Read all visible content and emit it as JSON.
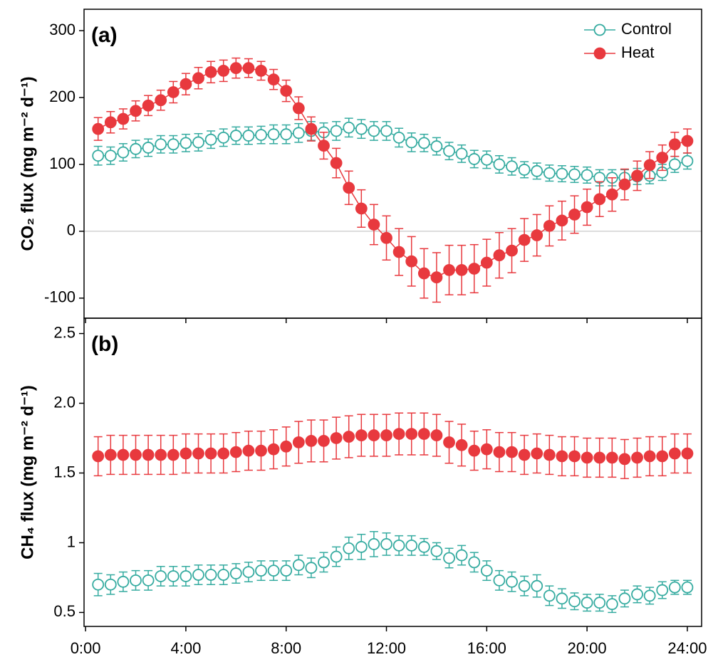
{
  "chart_data": [
    {
      "type": "line",
      "panel_label": "(a)",
      "y_label": "CO₂ flux (mg m⁻² d⁻¹)",
      "x": [
        0.5,
        1,
        1.5,
        2,
        2.5,
        3,
        3.5,
        4,
        4.5,
        5,
        5.5,
        6,
        6.5,
        7,
        7.5,
        8,
        8.5,
        9,
        9.5,
        10,
        10.5,
        11,
        11.5,
        12,
        12.5,
        13,
        13.5,
        14,
        14.5,
        15,
        15.5,
        16,
        16.5,
        17,
        17.5,
        18,
        18.5,
        19,
        19.5,
        20,
        20.5,
        21,
        21.5,
        22,
        22.5,
        23,
        23.5,
        24
      ],
      "xlim": [
        -0.06,
        24.57
      ],
      "xticks": [
        0,
        4,
        8,
        12,
        16,
        20,
        24
      ],
      "ylim": [
        -130,
        332
      ],
      "yticks": [
        -100,
        0,
        100,
        200,
        300
      ],
      "zero_line": true,
      "legend": "upper right",
      "connect": true,
      "series": [
        {
          "name": "Control",
          "color": "#35aba0",
          "filled": false,
          "values": [
            113,
            113,
            118,
            123,
            125,
            130,
            130,
            132,
            133,
            137,
            140,
            143,
            143,
            144,
            145,
            145,
            147,
            150,
            148,
            150,
            155,
            153,
            150,
            150,
            140,
            133,
            132,
            127,
            120,
            116,
            108,
            107,
            100,
            97,
            92,
            90,
            87,
            86,
            85,
            84,
            80,
            80,
            80,
            82,
            83,
            88,
            100,
            105
          ],
          "errors": [
            14,
            13,
            13,
            13,
            13,
            13,
            13,
            13,
            13,
            13,
            13,
            13,
            13,
            13,
            14,
            14,
            14,
            14,
            14,
            14,
            14,
            14,
            14,
            14,
            14,
            14,
            13,
            13,
            13,
            13,
            13,
            13,
            13,
            13,
            12,
            12,
            12,
            12,
            12,
            12,
            12,
            12,
            12,
            12,
            12,
            12,
            12,
            12
          ]
        },
        {
          "name": "Heat",
          "color": "#e8393e",
          "filled": true,
          "values": [
            153,
            163,
            168,
            180,
            188,
            196,
            208,
            220,
            229,
            238,
            240,
            244,
            244,
            240,
            227,
            210,
            184,
            153,
            128,
            102,
            65,
            34,
            10,
            -10,
            -31,
            -45,
            -63,
            -69,
            -58,
            -58,
            -56,
            -47,
            -36,
            -29,
            -13,
            -6,
            8,
            16,
            25,
            36,
            48,
            55,
            70,
            83,
            99,
            110,
            130,
            135
          ],
          "errors": [
            17,
            16,
            15,
            15,
            15,
            15,
            16,
            16,
            16,
            16,
            16,
            15,
            14,
            14,
            15,
            16,
            17,
            18,
            20,
            22,
            25,
            28,
            30,
            33,
            35,
            37,
            37,
            37,
            37,
            37,
            36,
            35,
            34,
            33,
            32,
            31,
            30,
            29,
            28,
            27,
            26,
            25,
            23,
            22,
            20,
            19,
            18,
            18
          ]
        }
      ]
    },
    {
      "type": "scatter",
      "panel_label": "(b)",
      "y_label": "CH₄ flux (mg m⁻² d⁻¹)",
      "x": [
        0.5,
        1,
        1.5,
        2,
        2.5,
        3,
        3.5,
        4,
        4.5,
        5,
        5.5,
        6,
        6.5,
        7,
        7.5,
        8,
        8.5,
        9,
        9.5,
        10,
        10.5,
        11,
        11.5,
        12,
        12.5,
        13,
        13.5,
        14,
        14.5,
        15,
        15.5,
        16,
        16.5,
        17,
        17.5,
        18,
        18.5,
        19,
        19.5,
        20,
        20.5,
        21,
        21.5,
        22,
        22.5,
        23,
        23.5,
        24
      ],
      "xlim": [
        -0.06,
        24.57
      ],
      "xticks": [
        {
          "value": 0,
          "label": "0:00"
        },
        {
          "value": 4,
          "label": "4:00"
        },
        {
          "value": 8,
          "label": "8:00"
        },
        {
          "value": 12,
          "label": "12:00"
        },
        {
          "value": 16,
          "label": "16:00"
        },
        {
          "value": 20,
          "label": "20:00"
        },
        {
          "value": 24,
          "label": "24:00"
        }
      ],
      "ylim": [
        0.4,
        2.61
      ],
      "yticks": [
        0.5,
        1,
        1.5,
        {
          "value": 2,
          "label": "2.0"
        },
        2.5
      ],
      "connect": false,
      "series": [
        {
          "name": "Control",
          "color": "#35aba0",
          "filled": false,
          "values": [
            0.7,
            0.7,
            0.72,
            0.73,
            0.73,
            0.76,
            0.76,
            0.76,
            0.77,
            0.77,
            0.77,
            0.78,
            0.79,
            0.8,
            0.8,
            0.8,
            0.84,
            0.82,
            0.86,
            0.9,
            0.96,
            0.97,
            0.99,
            0.99,
            0.98,
            0.98,
            0.97,
            0.94,
            0.89,
            0.91,
            0.86,
            0.8,
            0.73,
            0.72,
            0.69,
            0.69,
            0.62,
            0.6,
            0.58,
            0.57,
            0.57,
            0.56,
            0.6,
            0.63,
            0.62,
            0.66,
            0.68,
            0.68
          ],
          "errors": [
            0.08,
            0.07,
            0.07,
            0.07,
            0.07,
            0.07,
            0.07,
            0.07,
            0.07,
            0.07,
            0.07,
            0.07,
            0.07,
            0.07,
            0.07,
            0.07,
            0.07,
            0.07,
            0.07,
            0.07,
            0.08,
            0.09,
            0.09,
            0.08,
            0.07,
            0.07,
            0.06,
            0.06,
            0.07,
            0.07,
            0.07,
            0.07,
            0.07,
            0.07,
            0.07,
            0.08,
            0.07,
            0.07,
            0.06,
            0.06,
            0.06,
            0.06,
            0.06,
            0.06,
            0.06,
            0.06,
            0.05,
            0.05
          ]
        },
        {
          "name": "Heat",
          "color": "#e8393e",
          "filled": true,
          "values": [
            1.62,
            1.63,
            1.63,
            1.63,
            1.63,
            1.63,
            1.63,
            1.64,
            1.64,
            1.64,
            1.64,
            1.65,
            1.66,
            1.66,
            1.67,
            1.69,
            1.72,
            1.73,
            1.73,
            1.75,
            1.76,
            1.77,
            1.77,
            1.77,
            1.78,
            1.78,
            1.78,
            1.77,
            1.72,
            1.7,
            1.66,
            1.67,
            1.65,
            1.65,
            1.63,
            1.64,
            1.63,
            1.62,
            1.62,
            1.61,
            1.61,
            1.61,
            1.6,
            1.61,
            1.62,
            1.62,
            1.64,
            1.64
          ],
          "errors": [
            0.14,
            0.14,
            0.14,
            0.14,
            0.14,
            0.14,
            0.14,
            0.14,
            0.14,
            0.14,
            0.14,
            0.14,
            0.14,
            0.14,
            0.14,
            0.14,
            0.15,
            0.15,
            0.15,
            0.15,
            0.15,
            0.15,
            0.15,
            0.15,
            0.15,
            0.15,
            0.15,
            0.15,
            0.15,
            0.15,
            0.14,
            0.14,
            0.14,
            0.14,
            0.14,
            0.14,
            0.14,
            0.14,
            0.14,
            0.14,
            0.14,
            0.14,
            0.14,
            0.14,
            0.14,
            0.14,
            0.14,
            0.14
          ]
        }
      ]
    }
  ]
}
